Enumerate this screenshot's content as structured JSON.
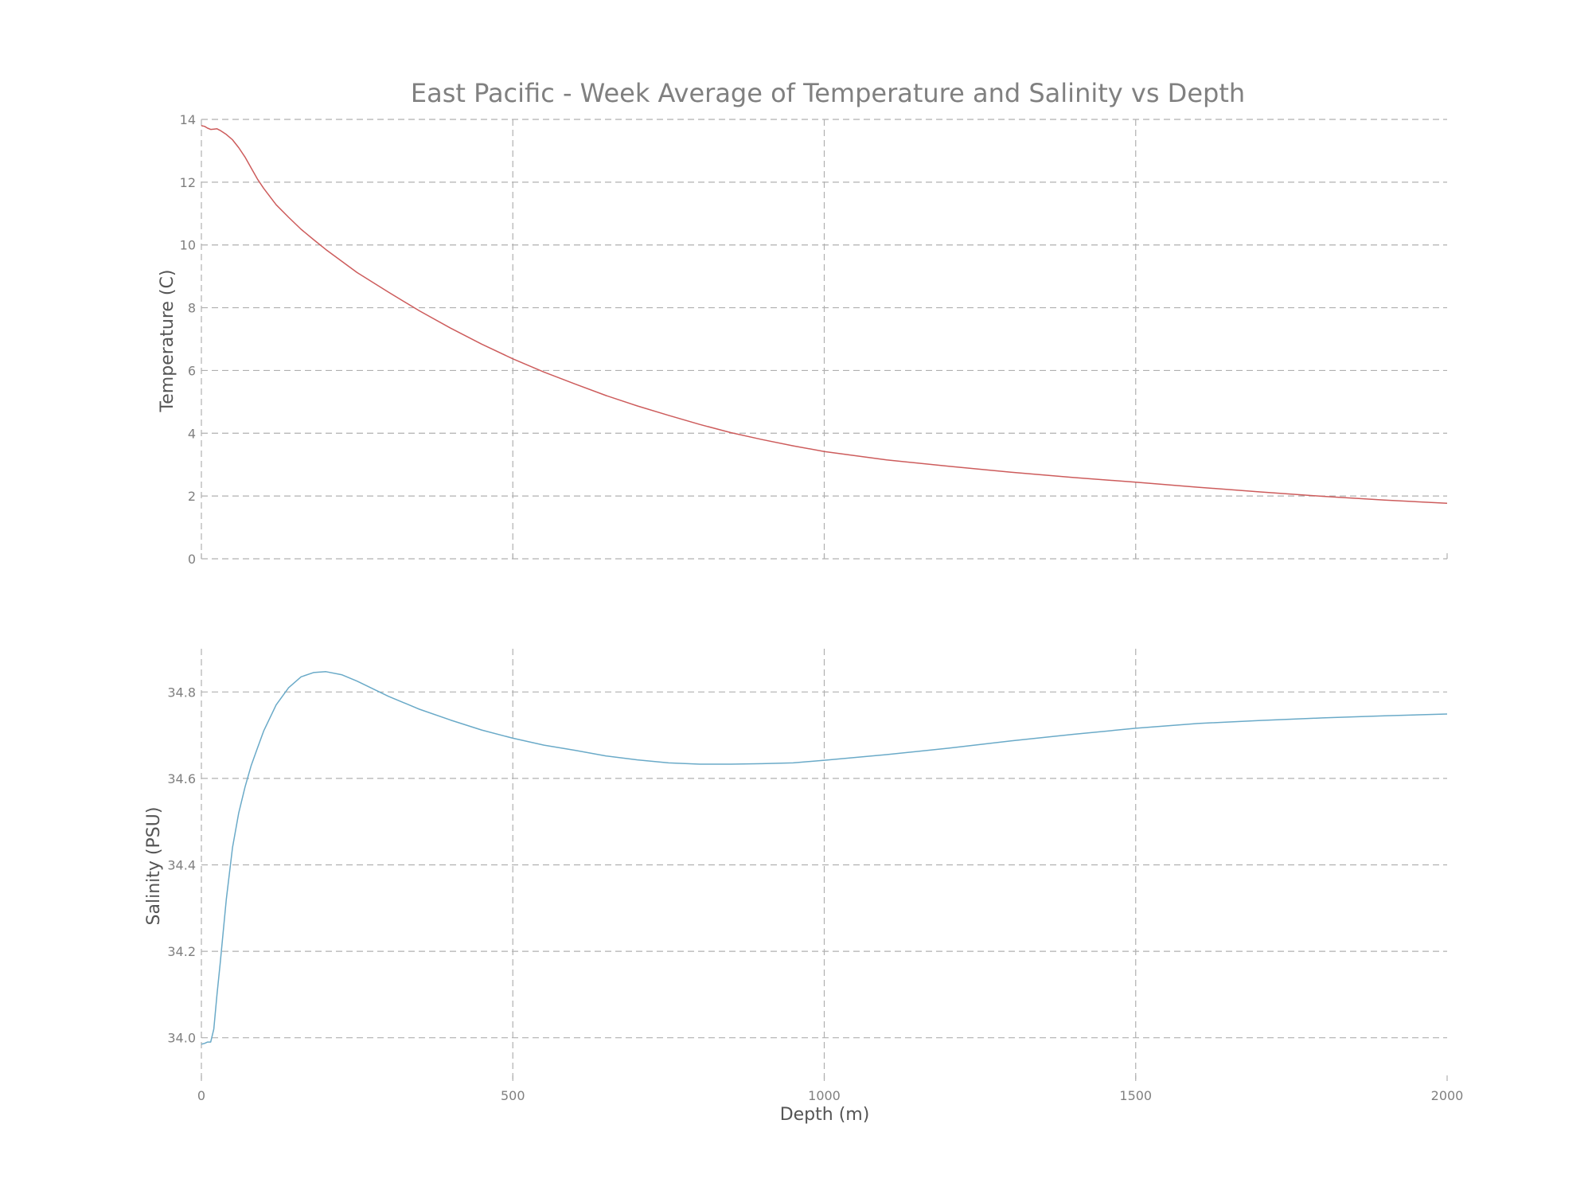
{
  "title": "East Pacific - Week Average of Temperature and Salinity vs Depth",
  "colors": {
    "text": "#808080",
    "grid": "#b0b0b0",
    "temperature": "#cd5c5c",
    "salinity": "#6aaac8"
  },
  "chart_data": [
    {
      "type": "line",
      "title": "East Pacific - Week Average of Temperature and Salinity vs Depth",
      "xlabel": "",
      "ylabel": "Temperature (C)",
      "xlim": [
        0,
        2000
      ],
      "ylim": [
        0,
        14
      ],
      "xticks": [
        0,
        500,
        1000,
        1500,
        2000
      ],
      "xtick_labels": [],
      "yticks": [
        0,
        2,
        4,
        6,
        8,
        10,
        12,
        14
      ],
      "ytick_labels": [
        "0",
        "2",
        "4",
        "6",
        "8",
        "10",
        "12",
        "14"
      ],
      "grid": true,
      "series": [
        {
          "color": "#cd5c5c",
          "x": [
            0,
            5,
            10,
            15,
            20,
            25,
            30,
            40,
            50,
            60,
            70,
            80,
            90,
            100,
            120,
            140,
            160,
            180,
            200,
            250,
            300,
            350,
            400,
            450,
            500,
            550,
            600,
            650,
            700,
            750,
            800,
            850,
            900,
            950,
            1000,
            1100,
            1200,
            1300,
            1400,
            1500,
            1600,
            1700,
            1800,
            1900,
            2000
          ],
          "y": [
            13.8,
            13.78,
            13.72,
            13.68,
            13.69,
            13.7,
            13.65,
            13.52,
            13.35,
            13.1,
            12.8,
            12.45,
            12.1,
            11.8,
            11.28,
            10.88,
            10.5,
            10.17,
            9.85,
            9.12,
            8.5,
            7.9,
            7.35,
            6.84,
            6.37,
            5.95,
            5.57,
            5.2,
            4.87,
            4.57,
            4.28,
            4.02,
            3.8,
            3.6,
            3.42,
            3.15,
            2.95,
            2.76,
            2.59,
            2.44,
            2.28,
            2.13,
            1.99,
            1.87,
            1.77
          ]
        }
      ]
    },
    {
      "type": "line",
      "title": "",
      "xlabel": "Depth (m)",
      "ylabel": "Salinity (PSU)",
      "xlim": [
        0,
        2000
      ],
      "ylim": [
        33.9,
        34.9
      ],
      "xticks": [
        0,
        500,
        1000,
        1500,
        2000
      ],
      "xtick_labels": [
        "0",
        "500",
        "1000",
        "1500",
        "2000"
      ],
      "yticks": [
        34.0,
        34.2,
        34.4,
        34.6,
        34.8
      ],
      "ytick_labels": [
        "34.0",
        "34.2",
        "34.4",
        "34.6",
        "34.8"
      ],
      "grid": true,
      "series": [
        {
          "color": "#6aaac8",
          "x": [
            0,
            5,
            10,
            15,
            20,
            25,
            30,
            40,
            50,
            60,
            70,
            80,
            90,
            100,
            120,
            140,
            160,
            180,
            200,
            225,
            250,
            300,
            350,
            400,
            450,
            500,
            550,
            600,
            650,
            700,
            750,
            800,
            850,
            900,
            950,
            1000,
            1100,
            1200,
            1300,
            1400,
            1500,
            1600,
            1700,
            1800,
            1900,
            2000
          ],
          "y": [
            33.985,
            33.987,
            33.99,
            33.99,
            34.02,
            34.1,
            34.17,
            34.32,
            34.44,
            34.52,
            34.58,
            34.63,
            34.67,
            34.71,
            34.77,
            34.81,
            34.835,
            34.845,
            34.847,
            34.84,
            34.825,
            34.79,
            34.76,
            34.735,
            34.712,
            34.693,
            34.677,
            34.665,
            34.652,
            34.643,
            34.636,
            34.633,
            34.633,
            34.634,
            34.636,
            34.642,
            34.655,
            34.67,
            34.687,
            34.702,
            34.716,
            34.727,
            34.734,
            34.74,
            34.745,
            34.749
          ]
        }
      ]
    }
  ]
}
